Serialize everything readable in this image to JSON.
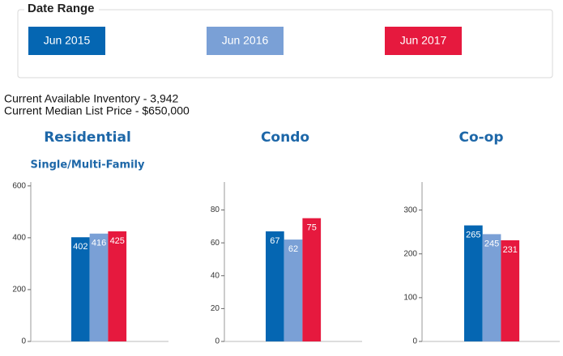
{
  "date_range": {
    "title": "Date Range",
    "buttons": [
      {
        "label": "Jun 2015",
        "color": "#0566b2"
      },
      {
        "label": "Jun 2016",
        "color": "#7aa0d6"
      },
      {
        "label": "Jun 2017",
        "color": "#e6193e"
      }
    ]
  },
  "info": [
    "Current Available Inventory - 3,942",
    "Current Median List Price - $650,000"
  ],
  "chart_data": [
    {
      "type": "bar",
      "title": "Residential",
      "subtitle": "Single/Multi-Family",
      "values": [
        402,
        416,
        425
      ],
      "colors": [
        "#0566b2",
        "#7aa0d6",
        "#e6193e"
      ],
      "ylim": [
        0,
        615
      ],
      "yticks": [
        0,
        200,
        400,
        600
      ]
    },
    {
      "type": "bar",
      "title": "Condo",
      "values": [
        67,
        62,
        75
      ],
      "colors": [
        "#0566b2",
        "#7aa0d6",
        "#e6193e"
      ],
      "ylim": [
        0,
        97
      ],
      "yticks": [
        0,
        20,
        40,
        60,
        80
      ]
    },
    {
      "type": "bar",
      "title": "Co-op",
      "values": [
        265,
        245,
        231
      ],
      "colors": [
        "#0566b2",
        "#7aa0d6",
        "#e6193e"
      ],
      "ylim": [
        0,
        364
      ],
      "yticks": [
        0,
        100,
        200,
        300
      ]
    }
  ]
}
